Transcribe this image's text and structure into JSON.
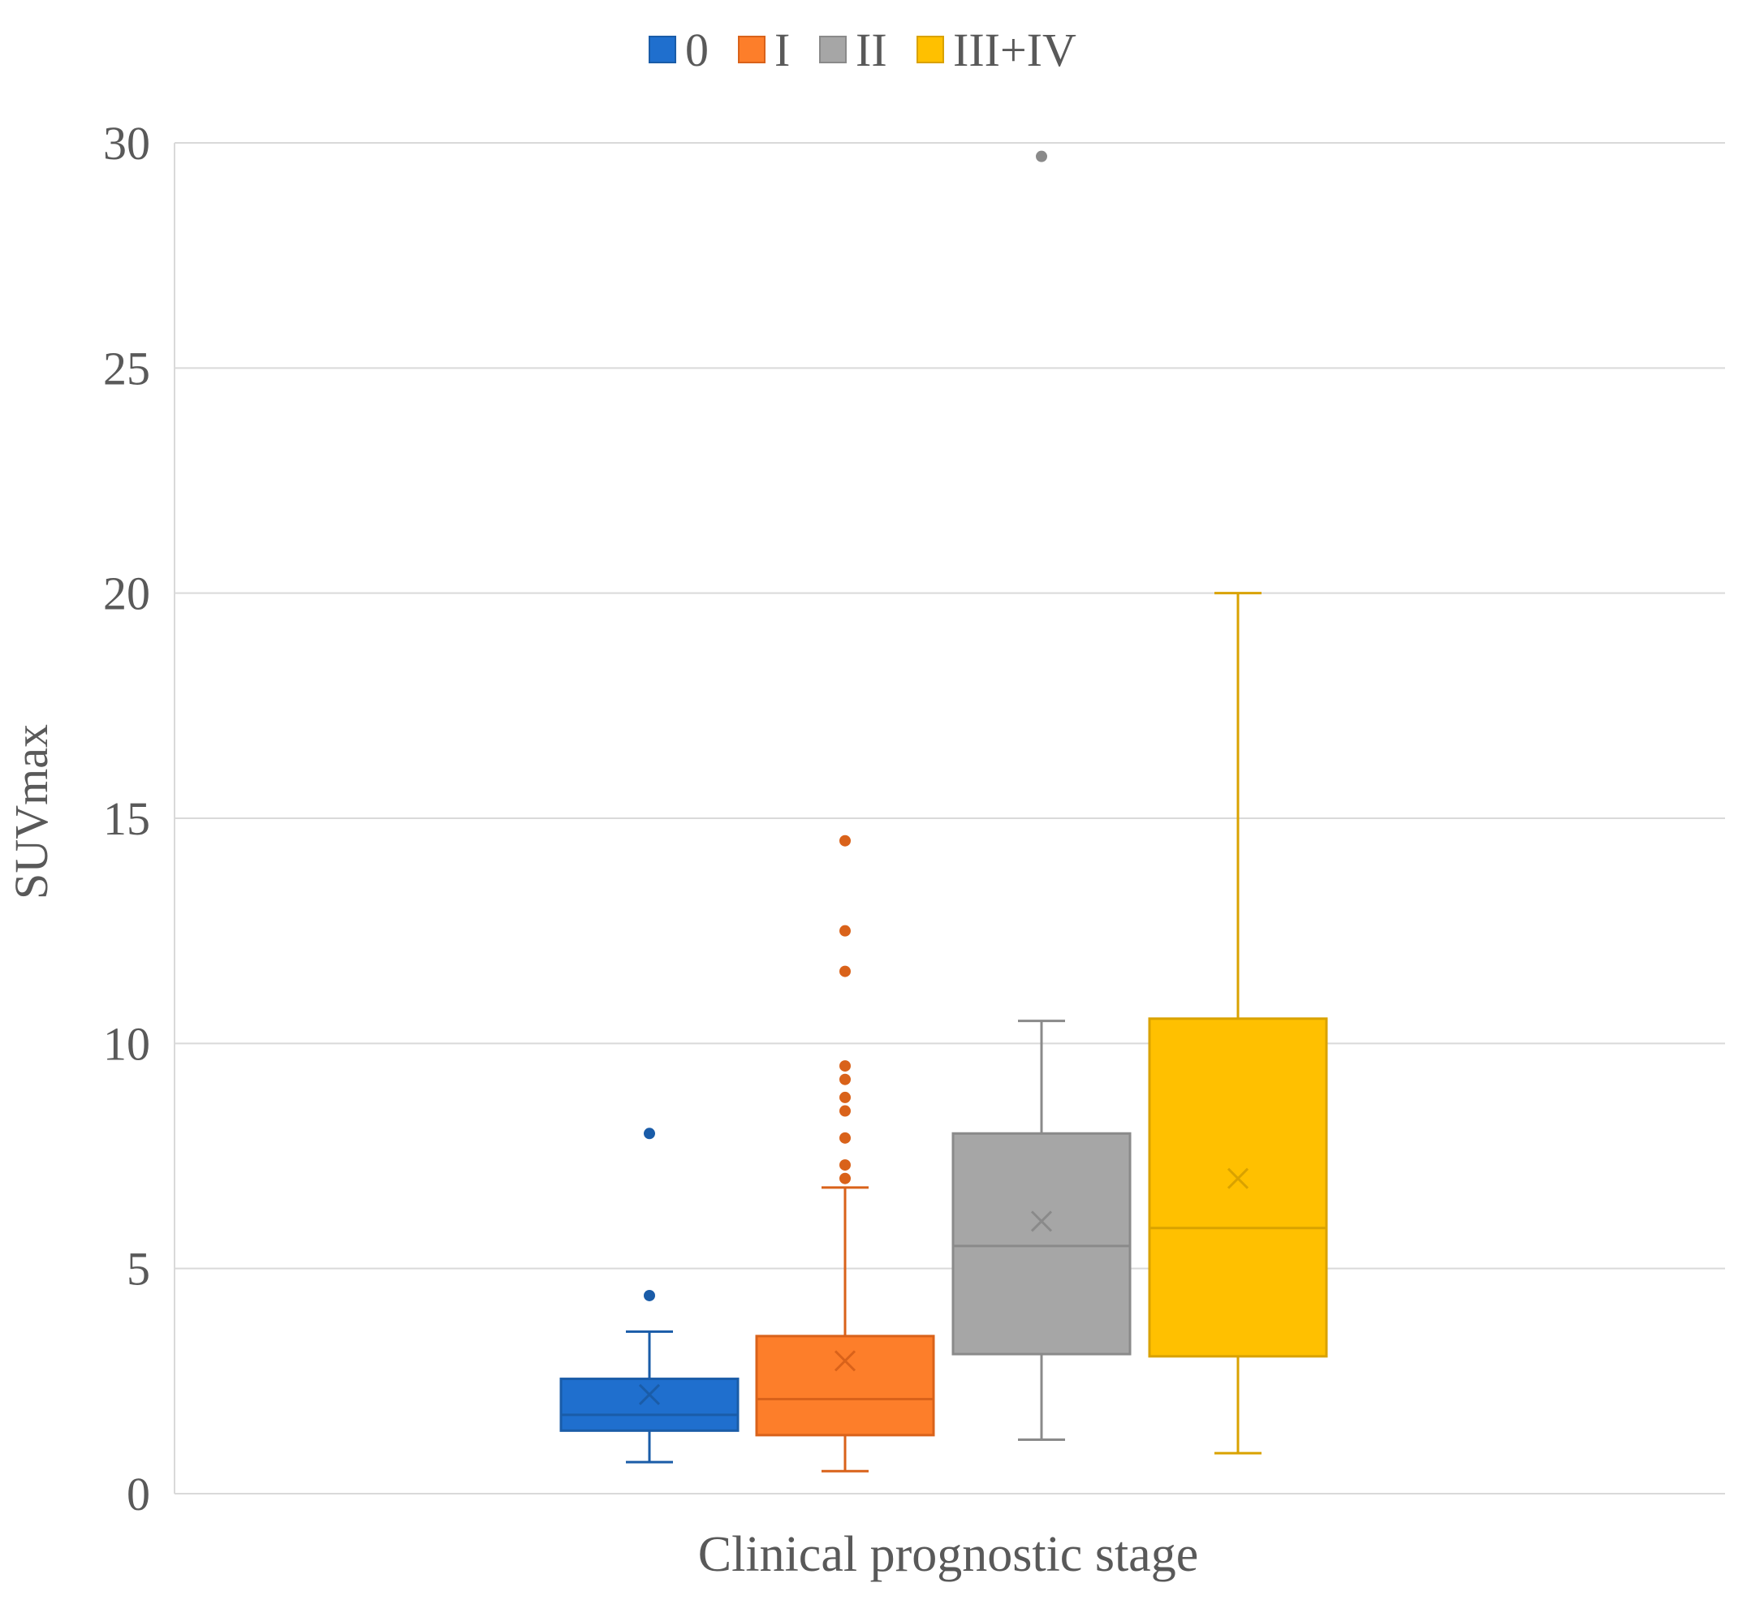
{
  "chart_data": {
    "type": "box",
    "title": "",
    "xlabel": "Clinical prognostic stage",
    "ylabel": "SUVmax",
    "ylim": [
      0,
      30
    ],
    "yticks": [
      0,
      5,
      10,
      15,
      20,
      25,
      30
    ],
    "grid": true,
    "legend_position": "top-center",
    "series": [
      {
        "name": "0",
        "color": "#1f6fce",
        "min": 0.7,
        "q1": 1.4,
        "median": 1.75,
        "q3": 2.55,
        "max": 3.6,
        "mean": 2.2,
        "outliers": [
          4.4,
          8.0
        ]
      },
      {
        "name": "I",
        "color": "#fd7e2a",
        "min": 0.5,
        "q1": 1.3,
        "median": 2.1,
        "q3": 3.5,
        "max": 6.8,
        "mean": 2.95,
        "outliers": [
          7.0,
          7.3,
          7.9,
          8.5,
          8.8,
          9.2,
          9.5,
          11.6,
          12.5,
          14.5
        ]
      },
      {
        "name": "II",
        "color": "#a6a6a6",
        "min": 1.2,
        "q1": 3.1,
        "median": 5.5,
        "q3": 8.0,
        "max": 10.5,
        "mean": 6.05,
        "outliers": [
          29.7
        ]
      },
      {
        "name": "III+IV",
        "color": "#ffc000",
        "min": 0.9,
        "q1": 3.05,
        "median": 5.9,
        "q3": 10.55,
        "max": 20.0,
        "mean": 7.0,
        "outliers": []
      }
    ]
  },
  "colors": {
    "grid": "#d9d9d9",
    "axis_text": "#595959",
    "outline": {
      "0": "#1a5ca8",
      "I": "#d9621a",
      "II": "#8a8a8a",
      "III+IV": "#d9a200"
    }
  }
}
